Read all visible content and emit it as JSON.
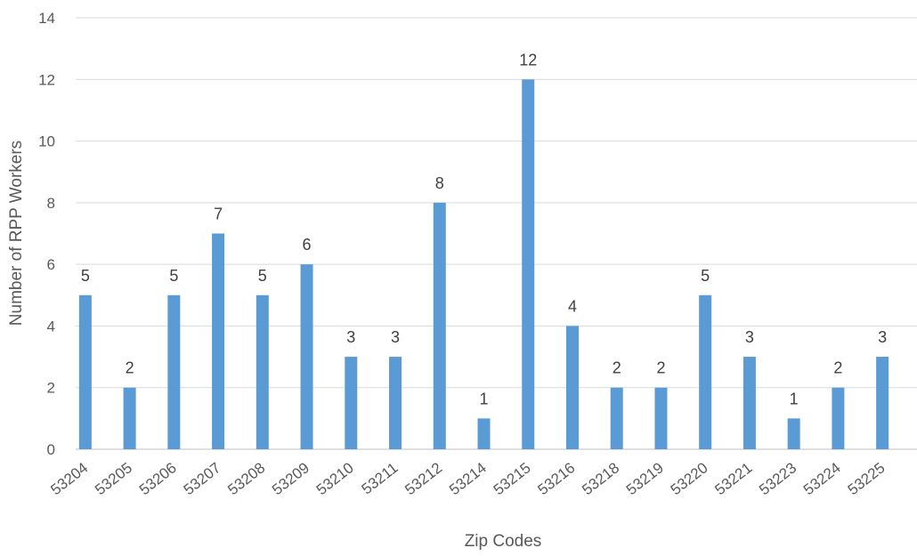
{
  "chart_data": {
    "type": "bar",
    "title": "",
    "xlabel": "Zip Codes",
    "ylabel": "Number of RPP Workers",
    "categories": [
      "53204",
      "53205",
      "53206",
      "53207",
      "53208",
      "53209",
      "53210",
      "53211",
      "53212",
      "53214",
      "53215",
      "53216",
      "53218",
      "53219",
      "53220",
      "53221",
      "53223",
      "53224",
      "53225"
    ],
    "values": [
      5,
      2,
      5,
      7,
      5,
      6,
      3,
      3,
      8,
      1,
      12,
      4,
      2,
      2,
      5,
      3,
      1,
      2,
      3
    ],
    "ylim": [
      0,
      14
    ],
    "yticks": [
      0,
      2,
      4,
      6,
      8,
      10,
      12,
      14
    ],
    "grid": true,
    "bar_color": "#5b9bd5",
    "data_labels": true
  }
}
